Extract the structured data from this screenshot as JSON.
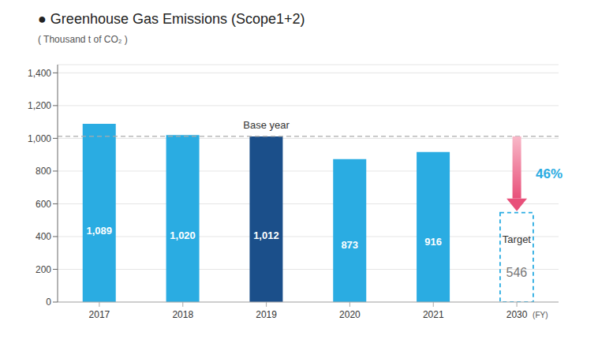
{
  "chart_data": {
    "type": "bar",
    "title": "● Greenhouse Gas Emissions  (Scope1+2)",
    "subtitle": "( Thousand t of CO₂ )",
    "categories": [
      "2017",
      "2018",
      "2019",
      "2020",
      "2021"
    ],
    "values": [
      1089,
      1020,
      1012,
      873,
      916
    ],
    "value_labels": [
      "1,089",
      "1,020",
      "1,012",
      "873",
      "916"
    ],
    "colors": [
      "#2AACE2",
      "#2AACE2",
      "#1B4F8A",
      "#2AACE2",
      "#2AACE2"
    ],
    "data_labels": true,
    "target": {
      "category": "2030",
      "value": 546,
      "label": "Target",
      "color": "#2AACE2",
      "reduction_label": "46%"
    },
    "base_line": {
      "category": "2019",
      "value": 1012,
      "label": "Base year"
    },
    "x_unit": "(FY)",
    "ylim": [
      0,
      1450
    ],
    "yticks": [
      0,
      200,
      400,
      600,
      800,
      {
        "value": 1000,
        "label": "1,000"
      },
      {
        "value": 1200,
        "label": "1,200"
      },
      {
        "value": 1400,
        "label": "1,400"
      }
    ],
    "grid": true
  }
}
